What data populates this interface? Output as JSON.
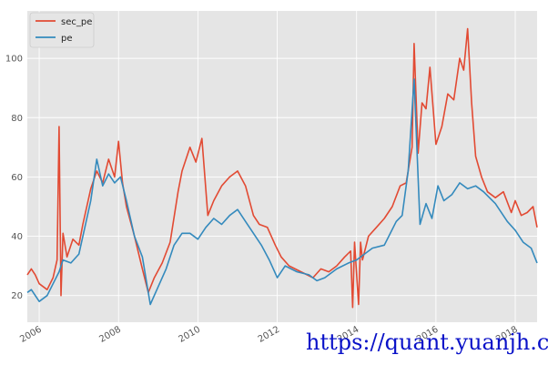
{
  "chart_data": {
    "type": "line",
    "title": "",
    "xlabel": "",
    "ylabel": "",
    "xlim": [
      2005.7,
      2018.55
    ],
    "ylim": [
      11,
      116
    ],
    "grid": true,
    "legend_position": "top-left",
    "x_ticks": [
      2006,
      2008,
      2010,
      2012,
      2014,
      2016,
      2018
    ],
    "x_tick_labels": [
      "2006",
      "2008",
      "2010",
      "2012",
      "2014",
      "2016",
      "2018"
    ],
    "y_ticks": [
      20,
      40,
      60,
      80,
      100
    ],
    "y_tick_labels": [
      "20",
      "40",
      "60",
      "80",
      "100"
    ],
    "series": [
      {
        "name": "sec_pe",
        "color": "#e24a33",
        "x": [
          2005.7,
          2005.8,
          2005.9,
          2006.0,
          2006.2,
          2006.35,
          2006.45,
          2006.5,
          2006.55,
          2006.6,
          2006.7,
          2006.85,
          2007.0,
          2007.1,
          2007.3,
          2007.45,
          2007.6,
          2007.75,
          2007.9,
          2008.0,
          2008.1,
          2008.2,
          2008.4,
          2008.6,
          2008.75,
          2008.9,
          2009.1,
          2009.3,
          2009.5,
          2009.6,
          2009.8,
          2009.95,
          2010.1,
          2010.25,
          2010.4,
          2010.6,
          2010.8,
          2011.0,
          2011.2,
          2011.4,
          2011.55,
          2011.75,
          2011.95,
          2012.1,
          2012.3,
          2012.6,
          2012.9,
          2013.1,
          2013.3,
          2013.5,
          2013.7,
          2013.85,
          2013.9,
          2013.95,
          2014.05,
          2014.1,
          2014.15,
          2014.3,
          2014.5,
          2014.7,
          2014.9,
          2015.1,
          2015.25,
          2015.4,
          2015.45,
          2015.55,
          2015.65,
          2015.75,
          2015.85,
          2016.0,
          2016.15,
          2016.3,
          2016.45,
          2016.6,
          2016.7,
          2016.8,
          2016.9,
          2017.0,
          2017.15,
          2017.3,
          2017.5,
          2017.7,
          2017.9,
          2018.0,
          2018.15,
          2018.3,
          2018.45,
          2018.55
        ],
        "values": [
          27,
          29,
          27,
          24,
          22,
          26,
          32,
          77,
          20,
          41,
          33,
          39,
          37,
          44,
          56,
          62,
          58,
          66,
          60,
          72,
          58,
          50,
          40,
          29,
          21,
          26,
          31,
          38,
          55,
          62,
          70,
          65,
          73,
          47,
          52,
          57,
          60,
          62,
          57,
          47,
          44,
          43,
          37,
          33,
          30,
          28,
          26,
          29,
          28,
          30,
          33,
          35,
          16,
          38,
          17,
          38,
          32,
          40,
          43,
          46,
          50,
          57,
          58,
          70,
          105,
          68,
          85,
          83,
          97,
          71,
          77,
          88,
          86,
          100,
          96,
          110,
          85,
          67,
          60,
          55,
          53,
          55,
          48,
          52,
          47,
          48,
          50,
          43
        ]
      },
      {
        "name": "pe",
        "color": "#348abd",
        "x": [
          2005.7,
          2005.8,
          2006.0,
          2006.2,
          2006.35,
          2006.5,
          2006.6,
          2006.8,
          2007.0,
          2007.15,
          2007.3,
          2007.45,
          2007.6,
          2007.75,
          2007.9,
          2008.05,
          2008.2,
          2008.4,
          2008.6,
          2008.8,
          2009.0,
          2009.2,
          2009.4,
          2009.6,
          2009.8,
          2010.0,
          2010.2,
          2010.4,
          2010.6,
          2010.8,
          2011.0,
          2011.2,
          2011.4,
          2011.6,
          2011.8,
          2012.0,
          2012.2,
          2012.5,
          2012.8,
          2013.0,
          2013.2,
          2013.5,
          2013.8,
          2014.0,
          2014.2,
          2014.4,
          2014.7,
          2015.0,
          2015.15,
          2015.3,
          2015.45,
          2015.6,
          2015.75,
          2015.9,
          2016.05,
          2016.2,
          2016.4,
          2016.6,
          2016.8,
          2017.0,
          2017.2,
          2017.5,
          2017.8,
          2018.0,
          2018.2,
          2018.4,
          2018.55
        ],
        "values": [
          21,
          22,
          18,
          20,
          24,
          28,
          32,
          31,
          34,
          43,
          52,
          66,
          57,
          61,
          58,
          60,
          52,
          40,
          33,
          17,
          23,
          29,
          37,
          41,
          41,
          39,
          43,
          46,
          44,
          47,
          49,
          45,
          41,
          37,
          32,
          26,
          30,
          28,
          27,
          25,
          26,
          29,
          31,
          32,
          34,
          36,
          37,
          45,
          47,
          62,
          93,
          44,
          51,
          46,
          57,
          52,
          54,
          58,
          56,
          57,
          55,
          51,
          45,
          42,
          38,
          36,
          31
        ]
      }
    ]
  },
  "watermark": "https://quant.yuanjh.cn"
}
